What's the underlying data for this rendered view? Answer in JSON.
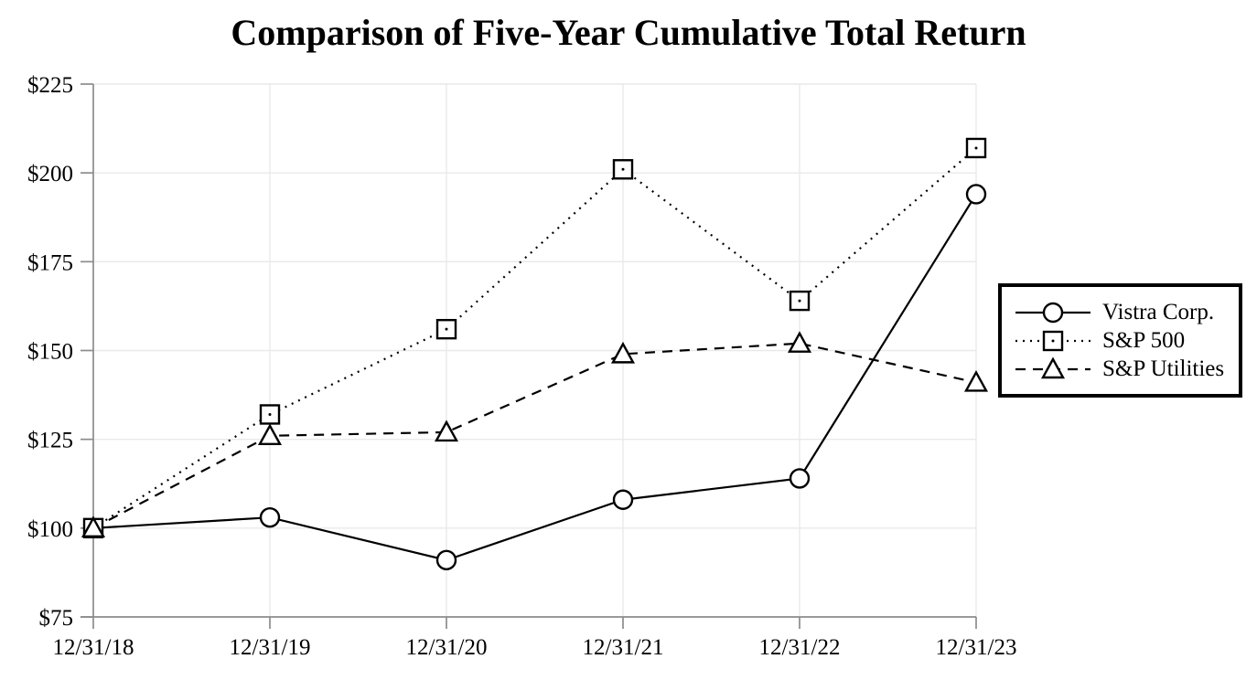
{
  "chart_data": {
    "type": "line",
    "title": "Comparison of Five-Year Cumulative Total Return",
    "categories": [
      "12/31/18",
      "12/31/19",
      "12/31/20",
      "12/31/21",
      "12/31/22",
      "12/31/23"
    ],
    "series": [
      {
        "name": "Vistra Corp.",
        "marker": "circle",
        "line": "solid",
        "values": [
          100,
          103,
          91,
          108,
          114,
          194
        ]
      },
      {
        "name": "S&P 500",
        "marker": "square",
        "line": "dotted",
        "values": [
          100,
          132,
          156,
          201,
          164,
          207
        ]
      },
      {
        "name": "S&P Utilities",
        "marker": "triangle",
        "line": "dashed",
        "values": [
          100,
          126,
          127,
          149,
          152,
          141
        ]
      }
    ],
    "y_ticks": [
      {
        "value": 75,
        "label": "$75"
      },
      {
        "value": 100,
        "label": "$100"
      },
      {
        "value": 125,
        "label": "$125"
      },
      {
        "value": 150,
        "label": "$150"
      },
      {
        "value": 175,
        "label": "$175"
      },
      {
        "value": 200,
        "label": "$200"
      },
      {
        "value": 225,
        "label": "$225"
      }
    ],
    "ylim": [
      75,
      225
    ],
    "grid": true,
    "legend_position": "right",
    "colors": {
      "line": "#000000",
      "grid": "#e9e9e9",
      "axis": "#8c8c8c",
      "text": "#000000",
      "background": "#ffffff"
    }
  }
}
